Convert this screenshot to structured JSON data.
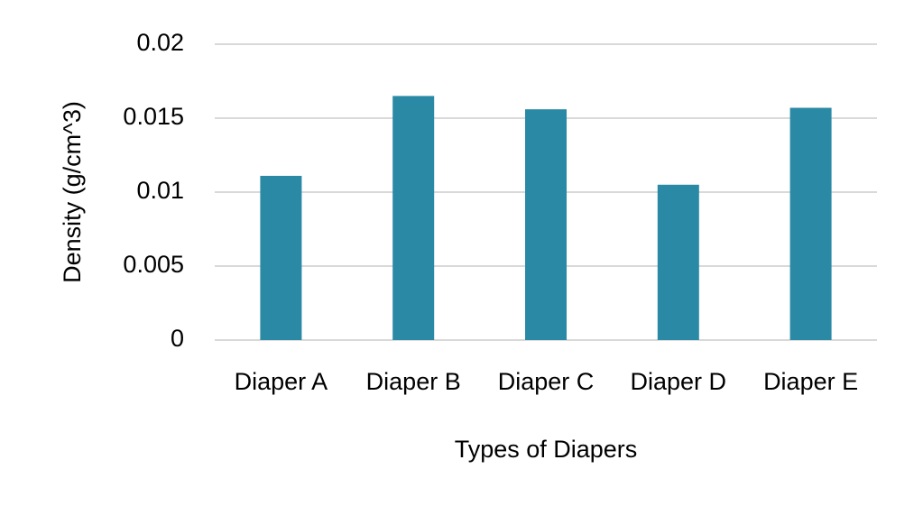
{
  "chart_data": {
    "type": "bar",
    "x_label": "Types of Diapers",
    "y_label": "Density (g/cm^3)",
    "categories": [
      "Diaper A",
      "Diaper B",
      "Diaper C",
      "Diaper D",
      "Diaper E"
    ],
    "values": [
      0.0111,
      0.0165,
      0.0156,
      0.0105,
      0.0157
    ],
    "color": "#2a89a4",
    "ylim": [
      0,
      0.02
    ],
    "yticks": [
      0,
      0.005,
      0.01,
      0.015,
      0.02
    ],
    "grid": true
  }
}
